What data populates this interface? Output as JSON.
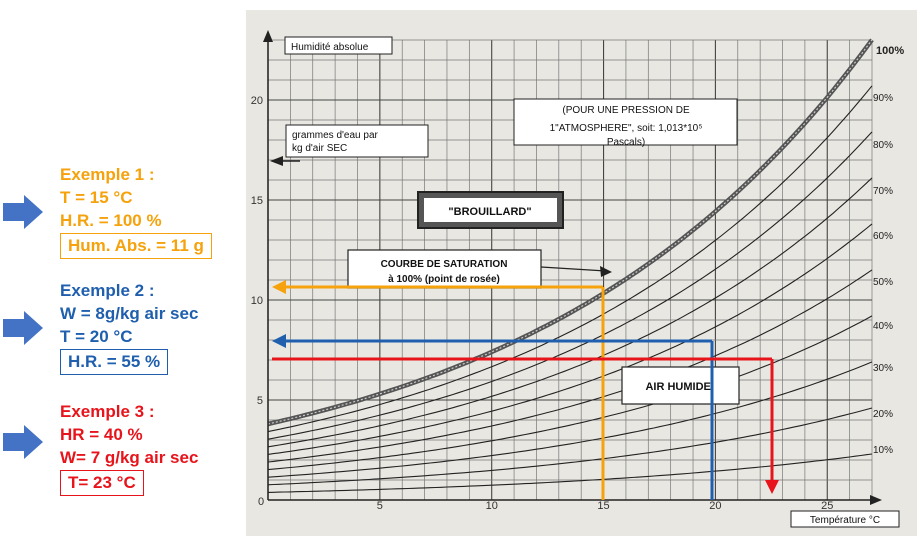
{
  "chart": {
    "y_axis_label": "Humidité absolue",
    "y_unit_label": [
      "grammes d'eau par",
      "kg d'air SEC"
    ],
    "x_axis_label": "Température °C",
    "pressure_note": [
      "(POUR UNE PRESSION DE",
      "1\"ATMOSPHERE\", soit: 1,013*10⁵",
      "Pascals)"
    ],
    "fog_label": "\"BROUILLARD\"",
    "saturation_label": [
      "COURBE DE SATURATION",
      "à 100% (point de rosée)"
    ],
    "humid_air_label": "AIR HUMIDE!",
    "x_ticks": [
      "0",
      "5",
      "10",
      "15",
      "20",
      "25"
    ],
    "y_ticks": [
      "5",
      "10",
      "15",
      "20"
    ],
    "rh_labels": [
      "100%",
      "90%",
      "80%",
      "70%",
      "60%",
      "50%",
      "40%",
      "30%",
      "20%",
      "10%"
    ]
  },
  "chart_data": {
    "type": "line",
    "x_range": [
      0,
      27
    ],
    "y_range": [
      0,
      23
    ],
    "saturation_curve": [
      [
        0,
        3.8
      ],
      [
        5,
        5.4
      ],
      [
        10,
        7.6
      ],
      [
        15,
        10.7
      ],
      [
        20,
        14.7
      ],
      [
        25,
        20.2
      ],
      [
        27,
        22.8
      ]
    ],
    "rh_curves_percent": [
      10,
      20,
      30,
      40,
      50,
      60,
      70,
      80,
      90,
      100
    ]
  },
  "examples": [
    {
      "title": "Exemple 1 :",
      "lines": [
        "T = 15 °C",
        "H.R. = 100 %"
      ],
      "result": "Hum. Abs. = 11 g",
      "color": "#f5a20c"
    },
    {
      "title": "Exemple 2 :",
      "lines": [
        "W = 8g/kg air sec",
        "T = 20 °C"
      ],
      "result": "H.R. = 55 %",
      "color": "#1f5fae"
    },
    {
      "title": "Exemple 3 :",
      "lines": [
        "HR = 40 %",
        "W= 7 g/kg air sec"
      ],
      "result": "T= 23 °C",
      "color": "#e8141b"
    }
  ],
  "colors": {
    "arrow": "#4472c4",
    "ex1": "#f5a20c",
    "ex2": "#1f5fae",
    "ex3": "#e8141b"
  }
}
